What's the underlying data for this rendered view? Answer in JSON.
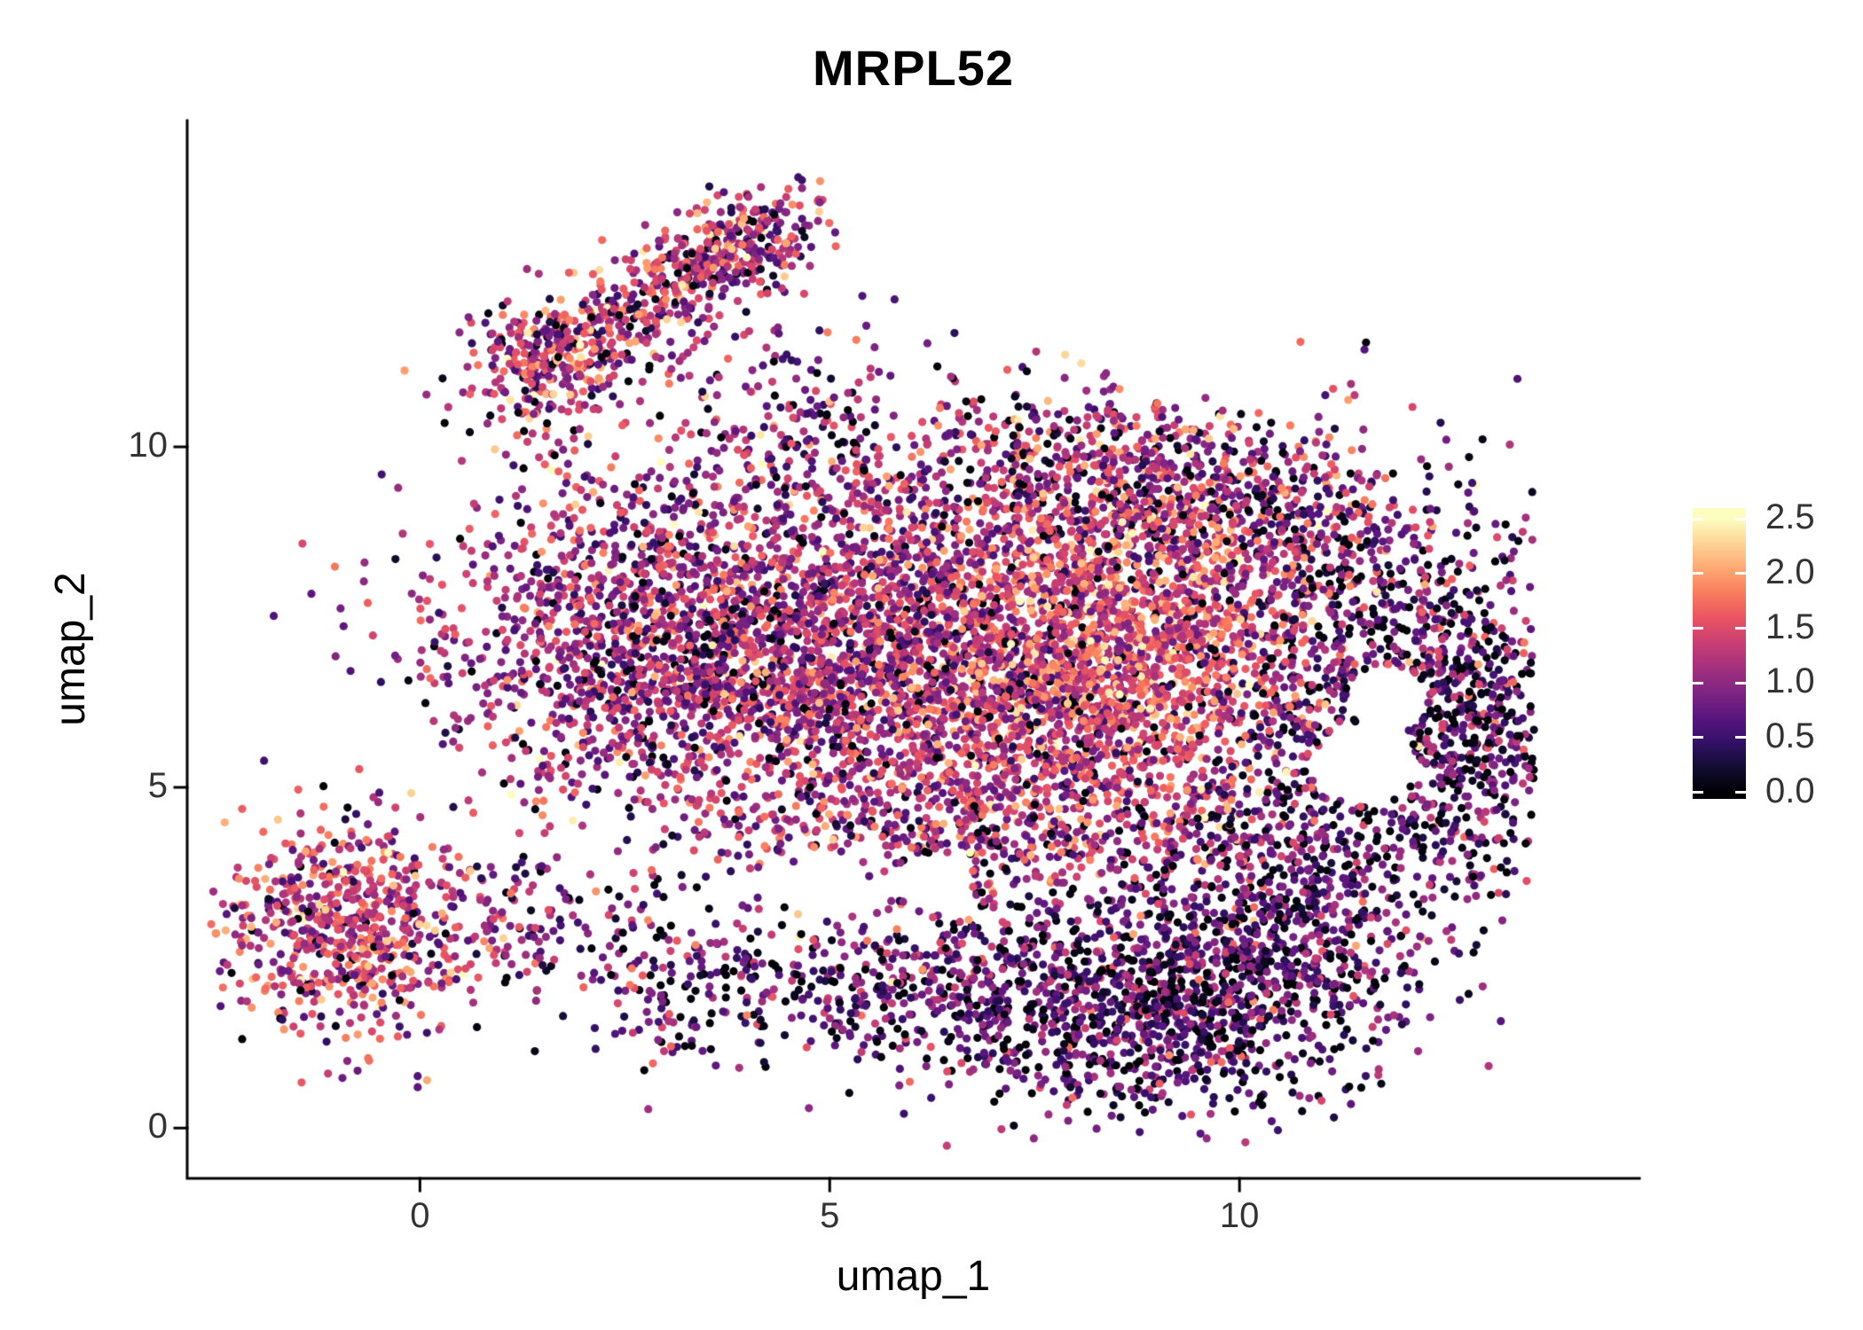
{
  "chart_data": {
    "type": "scatter",
    "title": "MRPL52",
    "xlabel": "umap_1",
    "ylabel": "umap_2",
    "xlim": [
      -2.84,
      14.88
    ],
    "ylim": [
      -0.74,
      14.79
    ],
    "grid": false,
    "background": "#ffffff",
    "x_ticks": {
      "values": [
        0,
        5,
        10
      ],
      "labels": [
        "0",
        "5",
        "10"
      ]
    },
    "y_ticks": {
      "values": [
        0,
        5,
        10
      ],
      "labels": [
        "0",
        "5",
        "10"
      ]
    },
    "colorbar": {
      "position": "right",
      "range": [
        -0.06,
        2.6
      ],
      "tick_values": [
        0.0,
        0.5,
        1.0,
        1.5,
        2.0,
        2.5
      ],
      "tick_labels": [
        "0.0",
        "0.5",
        "1.0",
        "1.5",
        "2.0",
        "2.5"
      ]
    },
    "colormap": {
      "name": "magma",
      "value_range": [
        0,
        2.5
      ],
      "stops": [
        "#000004",
        "#120d31",
        "#331067",
        "#59157e",
        "#7e2482",
        "#a3307e",
        "#c83e73",
        "#e95462",
        "#f97b5d",
        "#fea873",
        "#fed395",
        "#fcfdbf"
      ]
    },
    "point_radius_px": 4.6,
    "n_points_total": 12260,
    "seed": 42,
    "clusters": [
      {
        "name": "arm-upper",
        "cx": 2.8,
        "cy": 12.15,
        "sx": 1.05,
        "sy": 0.38,
        "angle": 38,
        "n": 420,
        "expr_mean": 1.25,
        "expr_sd": 0.55,
        "zero_frac": 0.07
      },
      {
        "name": "arm-top-lump",
        "cx": 3.95,
        "cy": 13.0,
        "sx": 0.5,
        "sy": 0.3,
        "angle": 20,
        "n": 200,
        "expr_mean": 1.25,
        "expr_sd": 0.55,
        "zero_frac": 0.07
      },
      {
        "name": "arm-base-lump",
        "cx": 1.55,
        "cy": 11.15,
        "sx": 0.45,
        "sy": 0.5,
        "angle": 0,
        "n": 230,
        "expr_mean": 1.3,
        "expr_sd": 0.55,
        "zero_frac": 0.06
      },
      {
        "name": "arm-neck",
        "cx": 4.4,
        "cy": 10.7,
        "sx": 0.85,
        "sy": 0.65,
        "angle": -20,
        "n": 130,
        "expr_mean": 1.0,
        "expr_sd": 0.5,
        "zero_frac": 0.12
      },
      {
        "name": "main-left",
        "cx": 3.4,
        "cy": 7.1,
        "sx": 1.55,
        "sy": 1.35,
        "angle": 0,
        "n": 2100,
        "expr_mean": 1.1,
        "expr_sd": 0.5,
        "zero_frac": 0.07
      },
      {
        "name": "main-center",
        "cx": 6.2,
        "cy": 6.9,
        "sx": 1.5,
        "sy": 1.5,
        "angle": 0,
        "n": 1900,
        "expr_mean": 1.2,
        "expr_sd": 0.5,
        "zero_frac": 0.06
      },
      {
        "name": "main-hot",
        "cx": 8.5,
        "cy": 7.1,
        "sx": 1.25,
        "sy": 1.35,
        "angle": 0,
        "n": 1900,
        "expr_mean": 1.55,
        "expr_sd": 0.45,
        "zero_frac": 0.04
      },
      {
        "name": "top-right",
        "cx": 9.7,
        "cy": 9.1,
        "sx": 1.5,
        "sy": 0.75,
        "angle": -10,
        "n": 650,
        "expr_mean": 1.05,
        "expr_sd": 0.55,
        "zero_frac": 0.13
      },
      {
        "name": "right-lobe",
        "cx": 11.7,
        "cy": 6.4,
        "sx": 1.05,
        "sy": 1.5,
        "angle": 0,
        "n": 850,
        "expr_mean": 0.75,
        "expr_sd": 0.5,
        "zero_frac": 0.2
      },
      {
        "name": "right-edge",
        "cx": 12.9,
        "cy": 5.3,
        "sx": 0.45,
        "sy": 1.3,
        "angle": 0,
        "n": 260,
        "expr_mean": 0.65,
        "expr_sd": 0.45,
        "zero_frac": 0.22
      },
      {
        "name": "bottom-right",
        "cx": 9.2,
        "cy": 1.9,
        "sx": 1.35,
        "sy": 0.85,
        "angle": 8,
        "n": 1250,
        "expr_mean": 0.7,
        "expr_sd": 0.45,
        "zero_frac": 0.17
      },
      {
        "name": "bottom-band",
        "cx": 6.2,
        "cy": 2.1,
        "sx": 1.4,
        "sy": 0.65,
        "angle": 5,
        "n": 430,
        "expr_mean": 0.8,
        "expr_sd": 0.45,
        "zero_frac": 0.15
      },
      {
        "name": "mid-bridge",
        "cx": 7.6,
        "cy": 4.4,
        "sx": 1.9,
        "sy": 0.6,
        "angle": 0,
        "n": 420,
        "expr_mean": 1.0,
        "expr_sd": 0.5,
        "zero_frac": 0.1
      },
      {
        "name": "right-bridge",
        "cx": 10.7,
        "cy": 3.4,
        "sx": 0.85,
        "sy": 0.85,
        "angle": 0,
        "n": 330,
        "expr_mean": 0.8,
        "expr_sd": 0.5,
        "zero_frac": 0.16
      },
      {
        "name": "lower-left",
        "cx": -0.85,
        "cy": 2.95,
        "sx": 0.8,
        "sy": 0.75,
        "angle": -25,
        "n": 680,
        "expr_mean": 1.35,
        "expr_sd": 0.5,
        "zero_frac": 0.05
      },
      {
        "name": "ll-connector",
        "cx": 1.6,
        "cy": 3.1,
        "sx": 1.0,
        "sy": 0.55,
        "angle": -15,
        "n": 160,
        "expr_mean": 0.95,
        "expr_sd": 0.5,
        "zero_frac": 0.14
      },
      {
        "name": "top-scatter",
        "cx": 7.4,
        "cy": 9.9,
        "sx": 1.9,
        "sy": 0.45,
        "angle": 0,
        "n": 230,
        "expr_mean": 1.0,
        "expr_sd": 0.55,
        "zero_frac": 0.14
      },
      {
        "name": "bottom-left-tail",
        "cx": 3.4,
        "cy": 2.0,
        "sx": 0.9,
        "sy": 0.45,
        "angle": 10,
        "n": 120,
        "expr_mean": 0.8,
        "expr_sd": 0.5,
        "zero_frac": 0.18
      }
    ],
    "holes": [
      {
        "cx": 11.55,
        "cy": 5.35,
        "r": 0.62
      },
      {
        "cx": 11.8,
        "cy": 6.3,
        "r": 0.5
      },
      {
        "cx": 5.0,
        "cy": 3.55,
        "r": 0.5
      },
      {
        "cx": 6.3,
        "cy": 3.6,
        "r": 0.45
      }
    ]
  },
  "colors": {
    "axis_line": "#000000",
    "tick_label": "#333333",
    "title": "#000000"
  }
}
